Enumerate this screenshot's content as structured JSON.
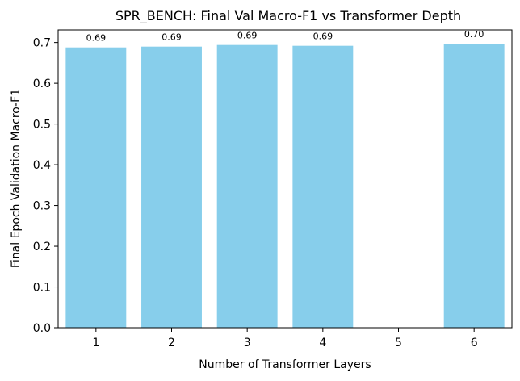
{
  "chart_data": {
    "type": "bar",
    "title": "SPR_BENCH: Final Val Macro-F1 vs Transformer Depth",
    "xlabel": "Number of Transformer Layers",
    "ylabel": "Final Epoch Validation Macro-F1",
    "categories": [
      "1",
      "2",
      "3",
      "4",
      "5",
      "6"
    ],
    "values": [
      0.688,
      0.69,
      0.694,
      0.692,
      null,
      0.697
    ],
    "data_labels": [
      "0.69",
      "0.69",
      "0.69",
      "0.69",
      "",
      "0.70"
    ],
    "yticks": [
      0.0,
      0.1,
      0.2,
      0.3,
      0.4,
      0.5,
      0.6,
      0.7
    ],
    "ytick_labels": [
      "0.0",
      "0.1",
      "0.2",
      "0.3",
      "0.4",
      "0.5",
      "0.6",
      "0.7"
    ],
    "ylim": [
      0,
      0.731
    ],
    "xlim": [
      0.5,
      6.5
    ],
    "grid": false,
    "legend": "none",
    "colors": {
      "bar": "#87ceeb",
      "axis": "#000000",
      "background": "#ffffff"
    }
  }
}
